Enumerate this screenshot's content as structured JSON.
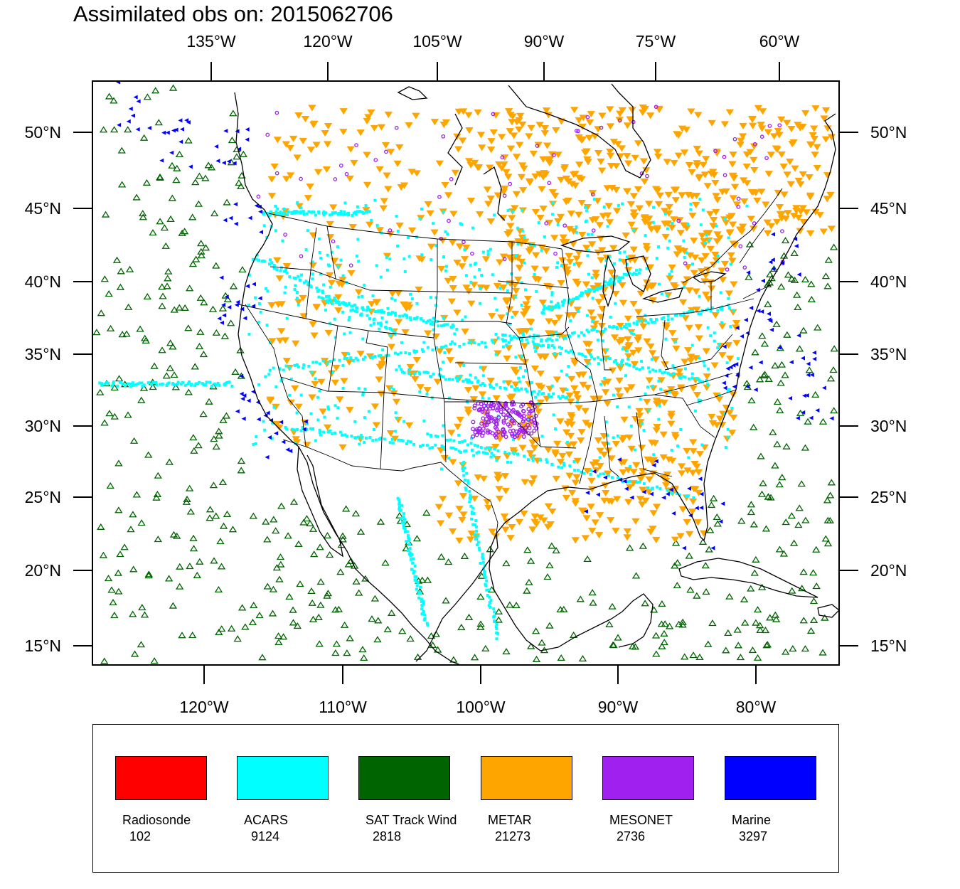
{
  "title": "Assimilated obs on: 2015062706",
  "top_lon_labels": [
    "135°W",
    "120°W",
    "105°W",
    "90°W",
    "75°W",
    "60°W"
  ],
  "bottom_lon_labels": [
    "120°W",
    "110°W",
    "100°W",
    "90°W",
    "80°W"
  ],
  "lat_labels": [
    "50°N",
    "45°N",
    "40°N",
    "35°N",
    "30°N",
    "25°N",
    "20°N",
    "15°N"
  ],
  "legend": [
    {
      "name": "Radiosonde",
      "count": "102",
      "color": "#ff0000"
    },
    {
      "name": "ACARS",
      "count": "9124",
      "color": "#00ffff"
    },
    {
      "name": "SAT Track Wind",
      "count": "2818",
      "color": "#006400"
    },
    {
      "name": "METAR",
      "count": "21273",
      "color": "#ffa500"
    },
    {
      "name": "MESONET",
      "count": "2736",
      "color": "#a020f0"
    },
    {
      "name": "Marine",
      "count": "3297",
      "color": "#0000ff"
    }
  ]
}
